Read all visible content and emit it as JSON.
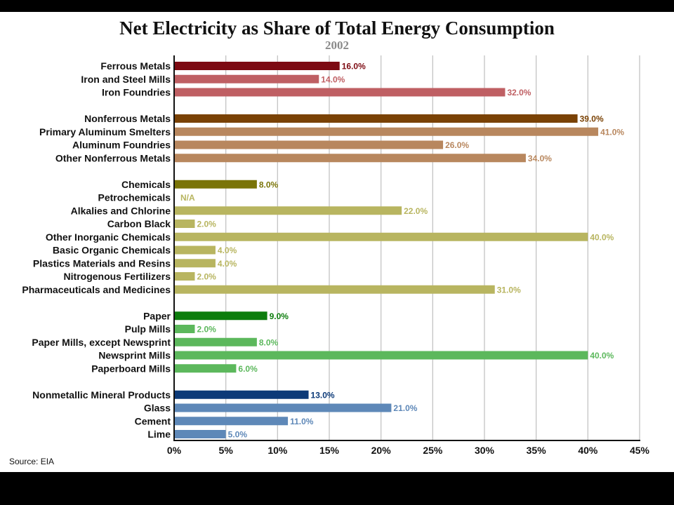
{
  "chart_data": {
    "type": "bar",
    "orientation": "horizontal",
    "title": "Net Electricity as Share of Total Energy Consumption",
    "subtitle": "2002",
    "source": "Source: EIA",
    "xlim": [
      0,
      45
    ],
    "x_ticks": [
      0,
      5,
      10,
      15,
      20,
      25,
      30,
      35,
      40,
      45
    ],
    "x_tick_suffix": "%",
    "grid": "vertical",
    "groups": [
      {
        "color": "#7d0a12",
        "sub_color": "#bf5f63",
        "items": [
          {
            "label": "Ferrous Metals",
            "value": 16.0,
            "display": "16.0%",
            "is_group": true
          },
          {
            "label": "Iron and Steel Mills",
            "value": 14.0,
            "display": "14.0%"
          },
          {
            "label": "Iron Foundries",
            "value": 32.0,
            "display": "32.0%"
          }
        ]
      },
      {
        "color": "#7a4205",
        "sub_color": "#b8875e",
        "items": [
          {
            "label": "Nonferrous Metals",
            "value": 39.0,
            "display": "39.0%",
            "is_group": true
          },
          {
            "label": "Primary Aluminum Smelters",
            "value": 41.0,
            "display": "41.0%"
          },
          {
            "label": "Aluminum Foundries",
            "value": 26.0,
            "display": "26.0%"
          },
          {
            "label": "Other Nonferrous Metals",
            "value": 34.0,
            "display": "34.0%"
          }
        ]
      },
      {
        "color": "#7a7408",
        "sub_color": "#b8b560",
        "items": [
          {
            "label": "Chemicals",
            "value": 8.0,
            "display": "8.0%",
            "is_group": true
          },
          {
            "label": "Petrochemicals",
            "value": null,
            "display": "N/A"
          },
          {
            "label": "Alkalies and Chlorine",
            "value": 22.0,
            "display": "22.0%"
          },
          {
            "label": "Carbon Black",
            "value": 2.0,
            "display": "2.0%"
          },
          {
            "label": "Other Inorganic Chemicals",
            "value": 40.0,
            "display": "40.0%"
          },
          {
            "label": "Basic Organic Chemicals",
            "value": 4.0,
            "display": "4.0%"
          },
          {
            "label": "Plastics Materials and Resins",
            "value": 4.0,
            "display": "4.0%"
          },
          {
            "label": "Nitrogenous Fertilizers",
            "value": 2.0,
            "display": "2.0%"
          },
          {
            "label": "Pharmaceuticals and Medicines",
            "value": 31.0,
            "display": "31.0%"
          }
        ]
      },
      {
        "color": "#0d7d0d",
        "sub_color": "#5cb85c",
        "items": [
          {
            "label": "Paper",
            "value": 9.0,
            "display": "9.0%",
            "is_group": true
          },
          {
            "label": "Pulp Mills",
            "value": 2.0,
            "display": "2.0%"
          },
          {
            "label": "Paper Mills, except Newsprint",
            "value": 8.0,
            "display": "8.0%"
          },
          {
            "label": "Newsprint Mills",
            "value": 40.0,
            "display": "40.0%"
          },
          {
            "label": "Paperboard Mills",
            "value": 6.0,
            "display": "6.0%"
          }
        ]
      },
      {
        "color": "#0c3a78",
        "sub_color": "#5e88b8",
        "items": [
          {
            "label": "Nonmetallic Mineral Products",
            "value": 13.0,
            "display": "13.0%",
            "is_group": true
          },
          {
            "label": "Glass",
            "value": 21.0,
            "display": "21.0%"
          },
          {
            "label": "Cement",
            "value": 11.0,
            "display": "11.0%"
          },
          {
            "label": "Lime",
            "value": 5.0,
            "display": "5.0%"
          }
        ]
      }
    ]
  }
}
